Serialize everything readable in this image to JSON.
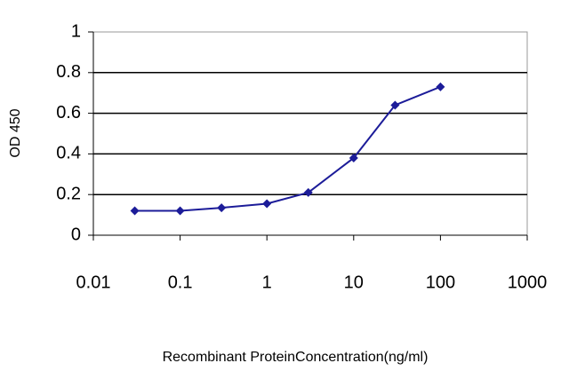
{
  "chart_data": {
    "type": "line",
    "y_label": "OD 450",
    "x_label": "Recombinant ProteinConcentration(ng/ml)",
    "x": [
      0.03,
      0.1,
      0.3,
      1,
      3,
      10,
      30,
      100
    ],
    "series": [
      {
        "color": "#1c1c99",
        "values": [
          0.12,
          0.12,
          0.135,
          0.155,
          0.21,
          0.38,
          0.64,
          0.73
        ]
      }
    ],
    "xlim": [
      0.01,
      1000
    ],
    "xticks": [
      0.01,
      0.1,
      1,
      10,
      100,
      1000
    ],
    "xscale": "log",
    "ylim": [
      0,
      1
    ],
    "yticks": [
      0,
      0.2,
      0.4,
      0.6,
      0.8,
      1
    ],
    "grid": true
  }
}
